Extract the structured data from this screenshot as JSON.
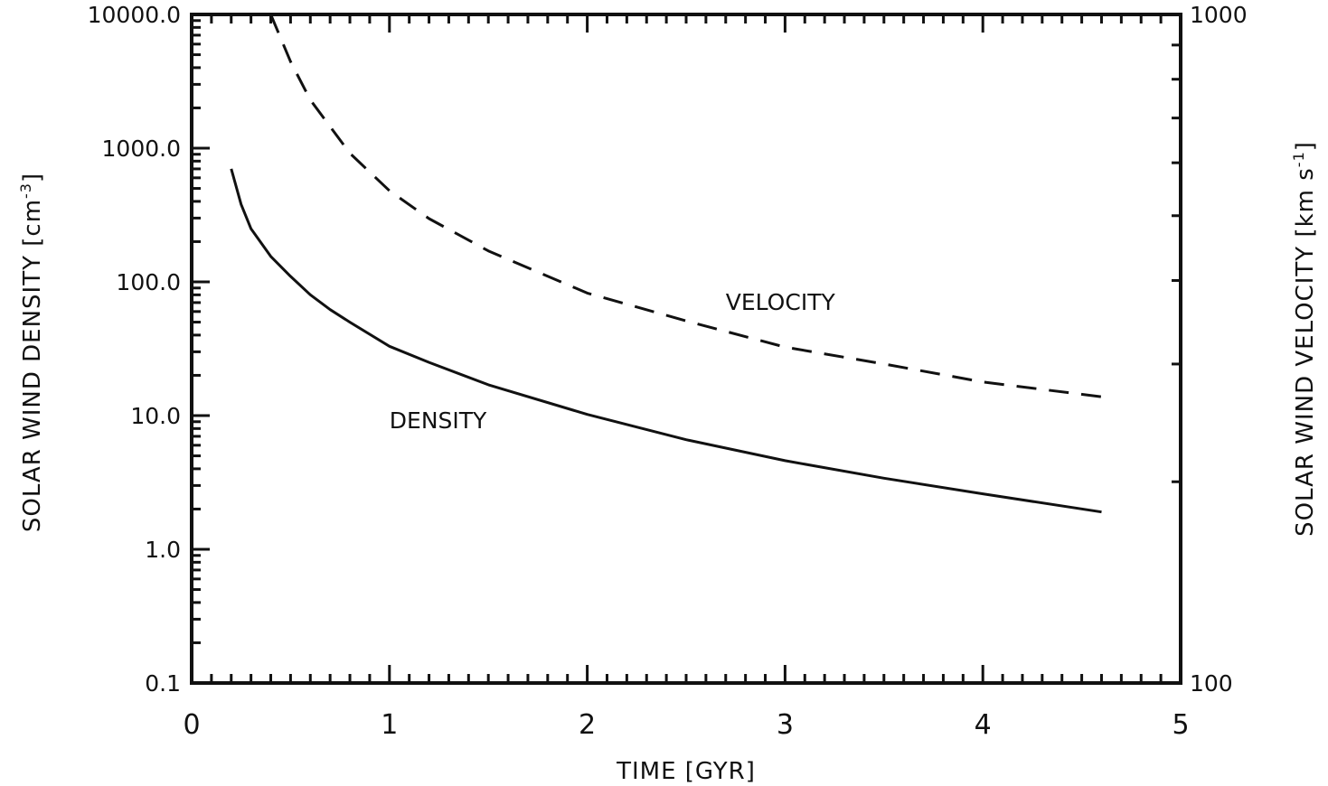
{
  "chart_data": {
    "type": "line",
    "title": "",
    "xlabel": "TIME  [GYR]",
    "ylabel_left": "SOLAR WIND DENSITY  [cm",
    "ylabel_left_exp": "-3",
    "ylabel_left_close": "]",
    "ylabel_right": "SOLAR WIND VELOCITY  [km  s",
    "ylabel_right_exp": "-1",
    "ylabel_right_close": "]",
    "x_range": [
      0,
      5
    ],
    "x_ticks": [
      "0",
      "1",
      "2",
      "3",
      "4",
      "5"
    ],
    "y_left_scale": "log",
    "y_left_range": [
      0.1,
      10000
    ],
    "y_left_ticks": [
      "0.1",
      "1.0",
      "10.0",
      "100.0",
      "1000.0",
      "10000.0"
    ],
    "y_right_scale": "log",
    "y_right_range": [
      100,
      1000
    ],
    "y_right_ticks": [
      "100",
      "1000"
    ],
    "grid": false,
    "series": [
      {
        "name": "DENSITY",
        "axis": "left",
        "style": "solid",
        "x": [
          0.2,
          0.25,
          0.3,
          0.4,
          0.5,
          0.6,
          0.7,
          0.8,
          1.0,
          1.2,
          1.5,
          2.0,
          2.5,
          3.0,
          3.5,
          4.0,
          4.6
        ],
        "y": [
          700,
          380,
          250,
          155,
          110,
          80,
          62,
          50,
          33,
          25,
          17,
          10.2,
          6.6,
          4.6,
          3.4,
          2.6,
          1.9
        ]
      },
      {
        "name": "VELOCITY",
        "axis": "right",
        "style": "dashed",
        "x": [
          0.4,
          0.5,
          0.6,
          0.8,
          1.0,
          1.2,
          1.5,
          2.0,
          2.5,
          3.0,
          3.5,
          4.0,
          4.6
        ],
        "y": [
          1000,
          850,
          745,
          620,
          545,
          495,
          443,
          383,
          348,
          318,
          300,
          282,
          268
        ]
      }
    ]
  }
}
